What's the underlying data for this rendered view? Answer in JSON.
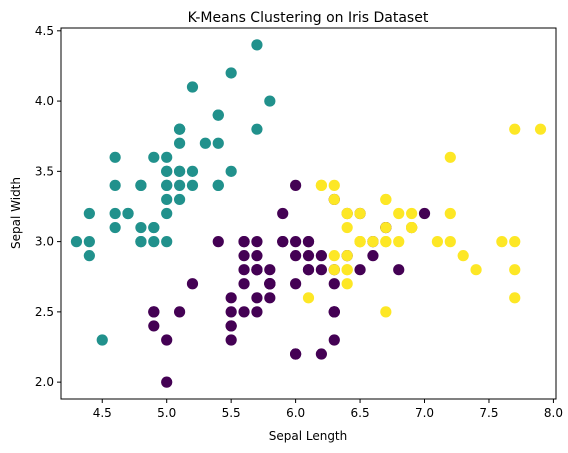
{
  "chart_data": {
    "type": "scatter",
    "title": "K-Means Clustering on Iris Dataset",
    "xlabel": "Sepal Length",
    "ylabel": "Sepal Width",
    "xlim": [
      4.18,
      8.02
    ],
    "ylim": [
      1.88,
      4.52
    ],
    "xticks": [
      4.5,
      5.0,
      5.5,
      6.0,
      6.5,
      7.0,
      7.5,
      8.0
    ],
    "yticks": [
      2.0,
      2.5,
      3.0,
      3.5,
      4.0,
      4.5
    ],
    "grid": false,
    "legend": null,
    "series": [
      {
        "color": "#21918c",
        "points": [
          [
            5.1,
            3.5
          ],
          [
            4.9,
            3.0
          ],
          [
            4.7,
            3.2
          ],
          [
            4.6,
            3.1
          ],
          [
            5.0,
            3.6
          ],
          [
            5.4,
            3.9
          ],
          [
            4.6,
            3.4
          ],
          [
            5.0,
            3.4
          ],
          [
            4.4,
            2.9
          ],
          [
            4.9,
            3.1
          ],
          [
            5.4,
            3.7
          ],
          [
            4.8,
            3.4
          ],
          [
            4.8,
            3.0
          ],
          [
            4.3,
            3.0
          ],
          [
            5.8,
            4.0
          ],
          [
            5.7,
            4.4
          ],
          [
            5.4,
            3.9
          ],
          [
            5.1,
            3.5
          ],
          [
            5.7,
            3.8
          ],
          [
            5.1,
            3.8
          ],
          [
            5.4,
            3.4
          ],
          [
            5.1,
            3.7
          ],
          [
            4.6,
            3.6
          ],
          [
            5.1,
            3.3
          ],
          [
            4.8,
            3.4
          ],
          [
            5.0,
            3.0
          ],
          [
            5.0,
            3.4
          ],
          [
            5.2,
            3.5
          ],
          [
            5.2,
            3.4
          ],
          [
            4.7,
            3.2
          ],
          [
            4.8,
            3.1
          ],
          [
            5.4,
            3.4
          ],
          [
            5.2,
            4.1
          ],
          [
            5.5,
            4.2
          ],
          [
            4.9,
            3.1
          ],
          [
            5.0,
            3.2
          ],
          [
            5.5,
            3.5
          ],
          [
            4.9,
            3.6
          ],
          [
            4.4,
            3.0
          ],
          [
            5.1,
            3.4
          ],
          [
            5.0,
            3.5
          ],
          [
            4.5,
            2.3
          ],
          [
            4.4,
            3.2
          ],
          [
            5.0,
            3.5
          ],
          [
            5.1,
            3.8
          ],
          [
            4.8,
            3.0
          ],
          [
            5.1,
            3.8
          ],
          [
            4.6,
            3.2
          ],
          [
            5.3,
            3.7
          ],
          [
            5.0,
            3.3
          ]
        ]
      },
      {
        "color": "#440154",
        "points": [
          [
            5.7,
            2.8
          ],
          [
            5.8,
            2.7
          ],
          [
            4.9,
            2.5
          ],
          [
            5.5,
            2.3
          ],
          [
            6.5,
            2.8
          ],
          [
            5.7,
            2.8
          ],
          [
            6.3,
            3.3
          ],
          [
            4.9,
            2.4
          ],
          [
            6.6,
            2.9
          ],
          [
            5.2,
            2.7
          ],
          [
            5.0,
            2.0
          ],
          [
            5.9,
            3.0
          ],
          [
            6.0,
            2.2
          ],
          [
            6.1,
            2.9
          ],
          [
            5.6,
            2.9
          ],
          [
            6.7,
            3.1
          ],
          [
            5.6,
            3.0
          ],
          [
            5.8,
            2.7
          ],
          [
            6.2,
            2.2
          ],
          [
            5.6,
            2.5
          ],
          [
            5.9,
            3.2
          ],
          [
            6.1,
            2.8
          ],
          [
            6.3,
            2.5
          ],
          [
            6.1,
            2.8
          ],
          [
            6.4,
            2.9
          ],
          [
            6.6,
            3.0
          ],
          [
            6.0,
            2.9
          ],
          [
            5.7,
            2.6
          ],
          [
            5.5,
            2.4
          ],
          [
            5.5,
            2.4
          ],
          [
            5.8,
            2.7
          ],
          [
            6.0,
            2.7
          ],
          [
            5.4,
            3.0
          ],
          [
            6.0,
            3.4
          ],
          [
            6.7,
            3.1
          ],
          [
            6.3,
            2.3
          ],
          [
            5.6,
            3.0
          ],
          [
            5.5,
            2.5
          ],
          [
            5.5,
            2.6
          ],
          [
            6.1,
            3.0
          ],
          [
            5.8,
            2.6
          ],
          [
            5.0,
            2.3
          ],
          [
            5.6,
            2.7
          ],
          [
            5.7,
            3.0
          ],
          [
            5.7,
            2.9
          ],
          [
            6.2,
            2.9
          ],
          [
            5.1,
            2.5
          ],
          [
            5.7,
            2.8
          ],
          [
            5.8,
            2.7
          ],
          [
            6.3,
            2.5
          ],
          [
            4.9,
            2.5
          ],
          [
            5.7,
            2.5
          ],
          [
            5.8,
            2.8
          ],
          [
            6.0,
            2.2
          ],
          [
            5.6,
            2.8
          ],
          [
            6.3,
            2.7
          ],
          [
            6.2,
            2.8
          ],
          [
            6.1,
            3.0
          ],
          [
            6.3,
            2.8
          ],
          [
            6.0,
            3.0
          ],
          [
            5.8,
            2.7
          ],
          [
            6.3,
            2.5
          ],
          [
            5.9,
            3.0
          ],
          [
            6.8,
            2.8
          ],
          [
            7.0,
            3.2
          ],
          [
            6.9,
            3.1
          ],
          [
            6.5,
            3.2
          ],
          [
            6.4,
            3.2
          ]
        ]
      },
      {
        "color": "#fde725",
        "points": [
          [
            6.9,
            3.1
          ],
          [
            6.7,
            3.0
          ],
          [
            6.3,
            3.3
          ],
          [
            7.1,
            3.0
          ],
          [
            6.5,
            3.0
          ],
          [
            7.6,
            3.0
          ],
          [
            7.3,
            2.9
          ],
          [
            6.7,
            2.5
          ],
          [
            7.2,
            3.6
          ],
          [
            6.5,
            3.2
          ],
          [
            6.4,
            2.7
          ],
          [
            6.8,
            3.0
          ],
          [
            6.4,
            3.2
          ],
          [
            6.5,
            3.0
          ],
          [
            7.7,
            3.8
          ],
          [
            7.7,
            2.6
          ],
          [
            6.9,
            3.2
          ],
          [
            7.7,
            2.8
          ],
          [
            6.7,
            3.3
          ],
          [
            7.2,
            3.2
          ],
          [
            6.4,
            2.8
          ],
          [
            7.2,
            3.0
          ],
          [
            7.4,
            2.8
          ],
          [
            7.9,
            3.8
          ],
          [
            6.4,
            2.8
          ],
          [
            6.1,
            2.6
          ],
          [
            7.7,
            3.0
          ],
          [
            6.3,
            3.4
          ],
          [
            6.4,
            3.1
          ],
          [
            6.9,
            3.1
          ],
          [
            6.7,
            3.1
          ],
          [
            6.9,
            3.1
          ],
          [
            6.8,
            3.2
          ],
          [
            6.7,
            3.3
          ],
          [
            6.7,
            3.0
          ],
          [
            6.5,
            3.0
          ],
          [
            6.2,
            3.4
          ],
          [
            6.6,
            3.0
          ],
          [
            6.3,
            2.9
          ],
          [
            6.4,
            2.9
          ],
          [
            6.2,
            3.4
          ],
          [
            6.4,
            3.2
          ],
          [
            6.5,
            3.0
          ],
          [
            6.3,
            2.8
          ]
        ]
      }
    ]
  }
}
